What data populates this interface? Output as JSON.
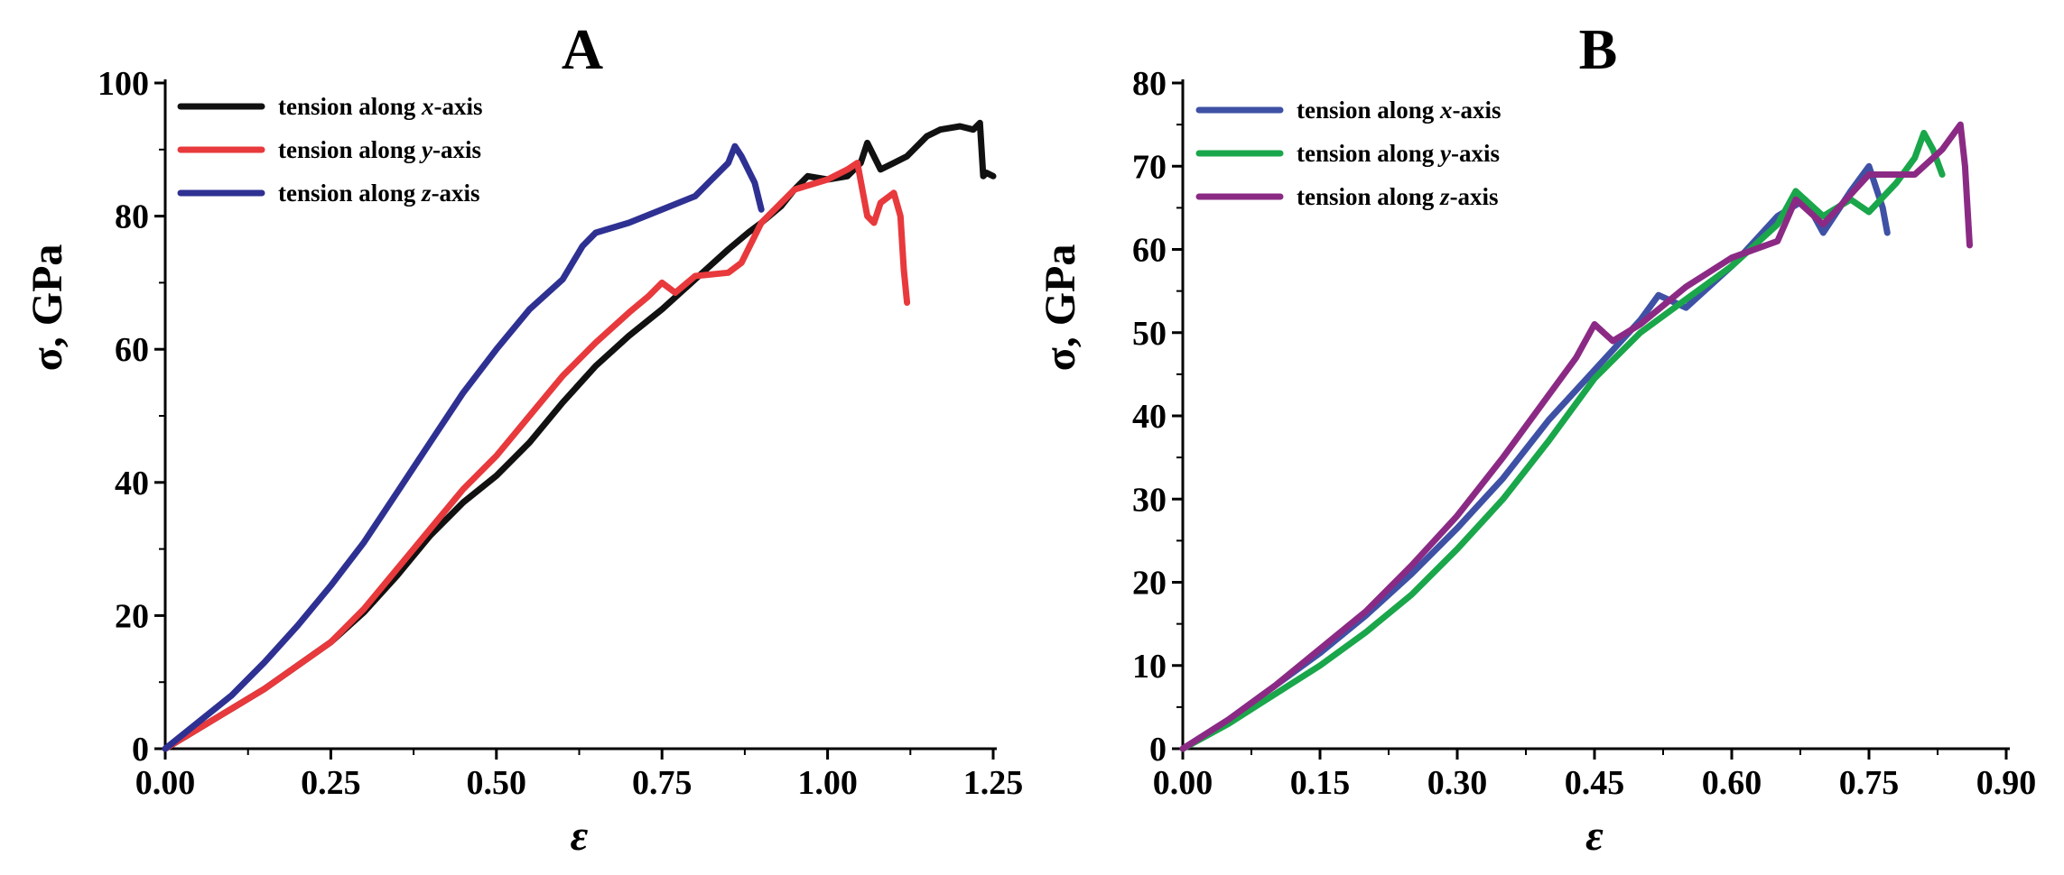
{
  "chart_data": [
    {
      "type": "line",
      "panel_label": "A",
      "xlabel": "ε",
      "ylabel": "σ, GPa",
      "xlim": [
        0,
        1.25
      ],
      "ylim": [
        0,
        100
      ],
      "xticks": [
        "0.00",
        "0.25",
        "0.50",
        "0.75",
        "1.00",
        "1.25"
      ],
      "yticks": [
        "0",
        "20",
        "40",
        "60",
        "80",
        "100"
      ],
      "legend_position": "top-left",
      "series": [
        {
          "legend_prefix": "tension along ",
          "legend_axis": "x",
          "legend_suffix": "-axis",
          "color": "#111111",
          "x": [
            0,
            0.05,
            0.1,
            0.15,
            0.2,
            0.25,
            0.3,
            0.35,
            0.4,
            0.45,
            0.5,
            0.55,
            0.6,
            0.65,
            0.7,
            0.75,
            0.8,
            0.85,
            0.88,
            0.9,
            0.93,
            0.95,
            0.97,
            1.0,
            1.03,
            1.05,
            1.06,
            1.08,
            1.1,
            1.12,
            1.15,
            1.17,
            1.2,
            1.22,
            1.23,
            1.235,
            1.24,
            1.25
          ],
          "y": [
            0,
            3,
            6,
            9,
            12.5,
            16,
            20.5,
            26,
            32,
            37,
            41,
            46,
            52,
            57.5,
            62,
            66,
            70.5,
            75,
            77.5,
            79,
            81.5,
            84,
            86,
            85.5,
            86,
            88,
            91,
            87,
            88,
            89,
            92,
            93,
            93.5,
            93,
            94,
            86,
            86.5,
            86
          ]
        },
        {
          "legend_prefix": "tension along ",
          "legend_axis": "y",
          "legend_suffix": "-axis",
          "color": "#e8393c",
          "x": [
            0,
            0.05,
            0.1,
            0.15,
            0.2,
            0.25,
            0.3,
            0.35,
            0.4,
            0.45,
            0.5,
            0.55,
            0.6,
            0.65,
            0.7,
            0.73,
            0.75,
            0.77,
            0.8,
            0.85,
            0.87,
            0.9,
            0.95,
            1.0,
            1.03,
            1.045,
            1.06,
            1.07,
            1.08,
            1.1,
            1.11,
            1.115,
            1.12
          ],
          "y": [
            0,
            3,
            6,
            9,
            12.5,
            16,
            21,
            27,
            33,
            39,
            44,
            50,
            56,
            61,
            65.5,
            68,
            70,
            68.5,
            71,
            71.5,
            73,
            79,
            84,
            85.5,
            87,
            88,
            80,
            79,
            82,
            83.5,
            80,
            72,
            67
          ]
        },
        {
          "legend_prefix": "tension along ",
          "legend_axis": "z",
          "legend_suffix": "-axis",
          "color": "#2e3192",
          "x": [
            0,
            0.05,
            0.1,
            0.15,
            0.2,
            0.25,
            0.3,
            0.35,
            0.4,
            0.45,
            0.5,
            0.55,
            0.6,
            0.63,
            0.65,
            0.7,
            0.75,
            0.8,
            0.82,
            0.85,
            0.86,
            0.87,
            0.89,
            0.9
          ],
          "y": [
            0,
            4,
            8,
            13,
            18.5,
            24.5,
            31,
            38.5,
            46,
            53.5,
            60,
            66,
            70.5,
            75.5,
            77.5,
            79,
            81,
            83,
            85,
            88,
            90.5,
            89,
            85,
            81
          ]
        }
      ]
    },
    {
      "type": "line",
      "panel_label": "B",
      "xlabel": "ε",
      "ylabel": "σ, GPa",
      "xlim": [
        0,
        0.9
      ],
      "ylim": [
        0,
        80
      ],
      "xticks": [
        "0.00",
        "0.15",
        "0.30",
        "0.45",
        "0.60",
        "0.75",
        "0.90"
      ],
      "yticks": [
        "0",
        "10",
        "20",
        "30",
        "40",
        "50",
        "60",
        "70",
        "80"
      ],
      "legend_position": "top-left",
      "series": [
        {
          "legend_prefix": "tension along ",
          "legend_axis": "x",
          "legend_suffix": "-axis",
          "color": "#3f51a5",
          "x": [
            0,
            0.05,
            0.1,
            0.15,
            0.2,
            0.25,
            0.3,
            0.35,
            0.4,
            0.45,
            0.5,
            0.52,
            0.55,
            0.6,
            0.65,
            0.68,
            0.7,
            0.73,
            0.75,
            0.765,
            0.77
          ],
          "y": [
            0,
            3.5,
            7.5,
            11.5,
            16,
            21,
            26.5,
            32.5,
            39.5,
            45.5,
            51.5,
            54.5,
            53,
            58,
            64,
            66,
            62,
            67,
            70,
            65,
            62
          ]
        },
        {
          "legend_prefix": "tension along ",
          "legend_axis": "y",
          "legend_suffix": "-axis",
          "color": "#1aa64a",
          "x": [
            0,
            0.05,
            0.1,
            0.15,
            0.2,
            0.25,
            0.3,
            0.35,
            0.4,
            0.45,
            0.5,
            0.55,
            0.6,
            0.65,
            0.67,
            0.7,
            0.73,
            0.75,
            0.78,
            0.8,
            0.81,
            0.82,
            0.83
          ],
          "y": [
            0,
            3,
            6.5,
            10,
            14,
            18.5,
            24,
            30,
            37,
            44.5,
            50,
            54,
            58,
            63,
            67,
            64,
            66,
            64.5,
            68,
            71,
            74,
            72,
            69
          ]
        },
        {
          "legend_prefix": "tension along ",
          "legend_axis": "z",
          "legend_suffix": "-axis",
          "color": "#8b2a84",
          "x": [
            0,
            0.05,
            0.1,
            0.15,
            0.2,
            0.25,
            0.3,
            0.35,
            0.4,
            0.43,
            0.45,
            0.47,
            0.5,
            0.55,
            0.6,
            0.65,
            0.67,
            0.7,
            0.75,
            0.8,
            0.83,
            0.85,
            0.855,
            0.86
          ],
          "y": [
            0,
            3.5,
            7.5,
            12,
            16.5,
            22,
            28,
            35,
            42.5,
            47,
            51,
            49,
            51,
            55.5,
            59,
            61,
            66,
            63,
            69,
            69,
            72,
            75,
            70,
            60.5
          ]
        }
      ]
    }
  ]
}
